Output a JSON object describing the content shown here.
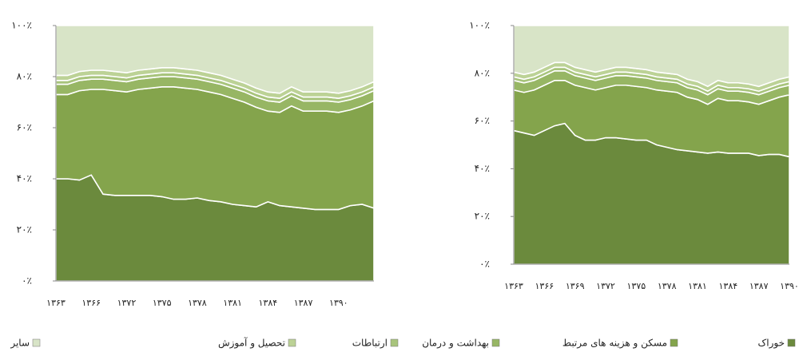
{
  "chart_data": [
    {
      "type": "stacked_area",
      "categories": [
        "۱۳۶۳",
        null,
        null,
        "۱۳۶۶",
        null,
        null,
        "۱۳۷۲",
        null,
        null,
        "۱۳۷۵",
        null,
        null,
        "۱۳۷۸",
        null,
        null,
        "۱۳۸۱",
        null,
        null,
        "۱۳۸۴",
        null,
        null,
        "۱۳۸۷",
        null,
        null,
        "۱۳۹۰",
        null,
        null,
        null
      ],
      "ylim": [
        0,
        100
      ],
      "yticks": [
        {
          "value": 0,
          "label": "۰٪"
        },
        {
          "value": 20,
          "label": "۲۰٪"
        },
        {
          "value": 40,
          "label": "۴۰٪"
        },
        {
          "value": 60,
          "label": "۶۰٪"
        },
        {
          "value": 80,
          "label": "۸۰٪"
        },
        {
          "value": 100,
          "label": "۱۰۰٪"
        }
      ],
      "series": [
        {
          "name": "خوراک",
          "color": "#6b8a3d",
          "values": [
            40,
            40,
            39.5,
            41.5,
            34,
            33.5,
            33.5,
            33.5,
            33.5,
            33,
            32,
            32,
            32.5,
            31.5,
            31,
            30,
            29.5,
            29,
            31,
            29.5,
            29,
            28.5,
            28,
            28,
            28,
            29.5,
            30,
            28.5
          ]
        },
        {
          "name": "مسکن و هزینه های مرتبط",
          "color": "#84a44c",
          "values": [
            33,
            33,
            35,
            33.5,
            41,
            41,
            40.5,
            41.5,
            42,
            43,
            44,
            43.5,
            42.5,
            42.5,
            42,
            41.5,
            40.5,
            39,
            35.5,
            36.5,
            39.5,
            38,
            38.5,
            38.5,
            38,
            37.5,
            38.5,
            42
          ]
        },
        {
          "name": "بهداشت و درمان",
          "color": "#97b664",
          "values": [
            4,
            4,
            4,
            4,
            4,
            4,
            4,
            4,
            4,
            4,
            4,
            4,
            4,
            4,
            4,
            4,
            4,
            4,
            4,
            4,
            4,
            4,
            4,
            4,
            4,
            4,
            4,
            4
          ]
        },
        {
          "name": "ارتباطات",
          "color": "#a8c47c",
          "values": [
            1.5,
            1.5,
            1.5,
            1.5,
            1.5,
            1.5,
            1.5,
            1.5,
            1.5,
            1.5,
            1.5,
            1.5,
            1.5,
            1.5,
            1.5,
            1.5,
            1.5,
            1.5,
            1.5,
            1.5,
            1.5,
            1.5,
            1.5,
            1.5,
            1.5,
            1.5,
            1.5,
            1.5
          ]
        },
        {
          "name": "تحصیل و آموزش",
          "color": "#bcd296",
          "values": [
            2,
            2,
            2,
            2,
            2,
            2,
            2,
            2,
            2,
            2,
            2,
            2,
            2,
            2,
            2,
            2,
            2,
            2,
            2,
            2,
            2,
            2,
            2,
            2,
            2,
            2,
            2,
            2
          ]
        },
        {
          "name": "سایر",
          "color": "#d8e4c7",
          "values": [
            19.5,
            19.5,
            18,
            17.5,
            17.5,
            18,
            18.5,
            17.5,
            17,
            16.5,
            16.5,
            17,
            17.5,
            18.5,
            19.5,
            21,
            22.5,
            24.5,
            26,
            26.5,
            24,
            26,
            26,
            26,
            26.5,
            25.5,
            24,
            22
          ]
        }
      ]
    },
    {
      "type": "stacked_area",
      "categories": [
        "۱۳۶۳",
        null,
        null,
        "۱۳۶۶",
        null,
        null,
        "۱۳۶۹",
        null,
        null,
        "۱۳۷۲",
        null,
        null,
        "۱۳۷۵",
        null,
        null,
        "۱۳۷۸",
        null,
        null,
        "۱۳۸۱",
        null,
        null,
        "۱۳۸۴",
        null,
        null,
        "۱۳۸۷",
        null,
        null,
        "۱۳۹۰"
      ],
      "ylim": [
        0,
        100
      ],
      "yticks": [
        {
          "value": 0,
          "label": "۰٪"
        },
        {
          "value": 20,
          "label": "۲۰٪"
        },
        {
          "value": 40,
          "label": "۴۰٪"
        },
        {
          "value": 60,
          "label": "۶۰٪"
        },
        {
          "value": 80,
          "label": "۸۰٪"
        },
        {
          "value": 100,
          "label": "۱۰۰٪"
        }
      ],
      "series": [
        {
          "color": "#6b8a3d",
          "values": [
            56,
            55,
            54,
            56,
            58,
            59,
            54,
            52,
            52,
            53,
            53,
            52.5,
            52,
            52,
            50,
            49,
            48,
            47.5,
            47,
            46.5,
            47,
            46.5,
            46.5,
            46.5,
            45.5,
            46,
            46,
            45
          ]
        },
        {
          "color": "#84a44c",
          "values": [
            17,
            17,
            19,
            19,
            19,
            18,
            21,
            22,
            21,
            21,
            22,
            22.5,
            22.5,
            22,
            23,
            23.5,
            24,
            22.5,
            22,
            20.5,
            22.5,
            22,
            22,
            21.5,
            21.5,
            22.5,
            24,
            26
          ]
        },
        {
          "color": "#97b664",
          "values": [
            4,
            4,
            4,
            4,
            4,
            4,
            4,
            4,
            4,
            4,
            4,
            4,
            4,
            4,
            4,
            4,
            4,
            4,
            4,
            4,
            4,
            4,
            4,
            4,
            4,
            4,
            4,
            4
          ]
        },
        {
          "color": "#a8c47c",
          "values": [
            1.5,
            1.5,
            1.5,
            1.5,
            1.5,
            1.5,
            1.5,
            1.5,
            1.5,
            1.5,
            1.5,
            1.5,
            1.5,
            1.5,
            1.5,
            1.5,
            1.5,
            1.5,
            1.5,
            1.5,
            1.5,
            1.5,
            1.5,
            1.5,
            1.5,
            1.5,
            1.5,
            1.5
          ]
        },
        {
          "color": "#bcd296",
          "values": [
            2,
            2,
            2,
            2,
            2,
            2,
            2,
            2,
            2,
            2,
            2,
            2,
            2,
            2,
            2,
            2,
            2,
            2,
            2,
            2,
            2,
            2,
            2,
            2,
            2,
            2,
            2,
            2
          ]
        },
        {
          "color": "#d8e4c7",
          "values": [
            19.5,
            20.5,
            19.5,
            17.5,
            15.5,
            15.5,
            17.5,
            18.5,
            19.5,
            18.5,
            17.5,
            17.5,
            18,
            18.5,
            19.5,
            20,
            20.5,
            22.5,
            23.5,
            25.5,
            23,
            24,
            24,
            24.5,
            25.5,
            24,
            22.5,
            21.5
          ]
        }
      ]
    }
  ]
}
